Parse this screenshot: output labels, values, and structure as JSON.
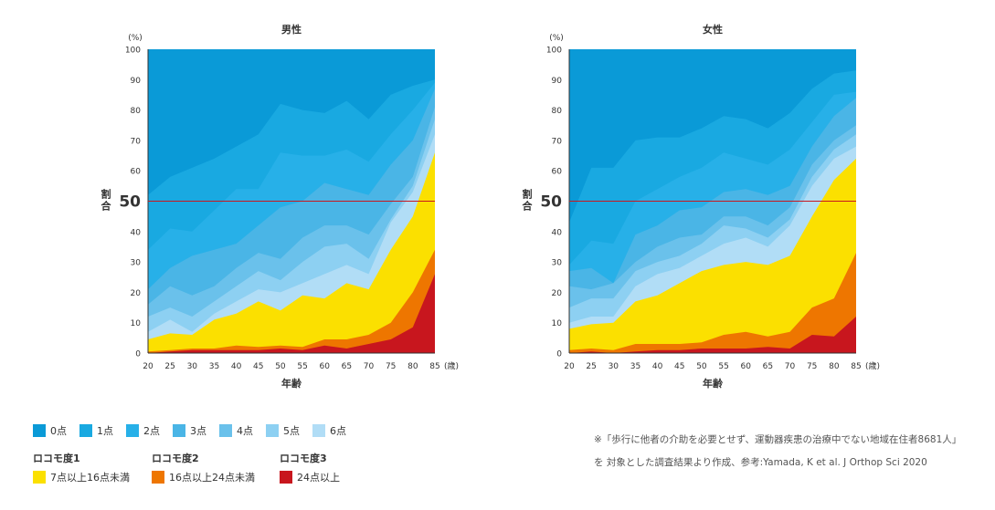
{
  "chart_data": [
    {
      "type": "area",
      "stacked": true,
      "title": "男性",
      "ylabel": "割合",
      "yunit": "(%)",
      "xlabel": "年齢",
      "xunit": "(歳)",
      "categories": [
        "20",
        "25",
        "30",
        "35",
        "40",
        "45",
        "50",
        "55",
        "60",
        "65",
        "70",
        "75",
        "80",
        "85"
      ],
      "ylim": [
        0,
        100
      ],
      "yticks": [
        0,
        10,
        20,
        30,
        40,
        50,
        60,
        70,
        80,
        90,
        100
      ],
      "yticks_display": [
        "0",
        "10",
        "20",
        "30",
        "40",
        "",
        "60",
        "70",
        "80",
        "90",
        "100"
      ],
      "reference_line": {
        "value": 50,
        "label": "50"
      },
      "cumulative": {
        "locomo3": [
          0,
          0.5,
          1,
          1,
          1,
          1,
          1.5,
          1,
          2.5,
          1.5,
          3,
          4.5,
          8.5,
          26
        ],
        "locomo2": [
          0.5,
          1,
          1.5,
          1.5,
          2.5,
          2,
          2.5,
          2,
          4.5,
          4.5,
          6,
          10,
          20,
          34
        ],
        "locomo1": [
          4.5,
          6.5,
          6,
          11,
          13,
          17,
          14,
          19,
          18,
          23,
          21,
          34,
          45,
          66
        ],
        "p6": [
          7,
          11,
          7,
          13,
          17,
          21,
          20,
          23,
          26,
          29,
          26,
          43,
          53,
          72
        ],
        "p5": [
          12,
          15,
          12,
          17,
          22,
          27,
          24,
          30,
          35,
          36,
          31,
          44,
          55,
          77
        ],
        "p4": [
          16,
          22,
          19,
          22,
          28,
          33,
          31,
          38,
          42,
          42,
          39,
          49,
          58,
          81
        ],
        "p3": [
          21,
          28,
          32,
          34,
          36,
          42,
          48,
          50,
          56,
          54,
          52,
          62,
          70,
          87
        ],
        "p2": [
          34,
          41,
          40,
          47,
          54,
          54,
          66,
          65,
          65,
          67,
          63,
          72,
          80,
          89
        ],
        "p1": [
          52,
          58,
          61,
          64,
          68,
          72,
          82,
          80,
          79,
          83,
          77,
          85,
          88,
          90
        ],
        "p0": [
          100,
          100,
          100,
          100,
          100,
          100,
          100,
          100,
          100,
          100,
          100,
          100,
          100,
          100
        ]
      }
    },
    {
      "type": "area",
      "stacked": true,
      "title": "女性",
      "ylabel": "割合",
      "yunit": "(%)",
      "xlabel": "年齢",
      "xunit": "(歳)",
      "categories": [
        "20",
        "25",
        "30",
        "35",
        "40",
        "45",
        "50",
        "55",
        "60",
        "65",
        "70",
        "75",
        "80",
        "85"
      ],
      "ylim": [
        0,
        100
      ],
      "yticks": [
        0,
        10,
        20,
        30,
        40,
        50,
        60,
        70,
        80,
        90,
        100
      ],
      "yticks_display": [
        "0",
        "10",
        "20",
        "30",
        "40",
        "",
        "60",
        "70",
        "80",
        "90",
        "100"
      ],
      "reference_line": {
        "value": 50,
        "label": "50"
      },
      "cumulative": {
        "locomo3": [
          0,
          0.5,
          0,
          0.5,
          1,
          1,
          1.5,
          1.5,
          1.5,
          2,
          1.5,
          6,
          5.5,
          12
        ],
        "locomo2": [
          1,
          1.5,
          1,
          3,
          3,
          3,
          3.5,
          6,
          7,
          5.5,
          7,
          15,
          18,
          33
        ],
        "locomo1": [
          8,
          9.5,
          10,
          17,
          19,
          23,
          27,
          29,
          30,
          29,
          32,
          45,
          57,
          64
        ],
        "p6": [
          10,
          12,
          12,
          22,
          26,
          28,
          32,
          36,
          38,
          35,
          42,
          55,
          64,
          68
        ],
        "p5": [
          15,
          18,
          18,
          27,
          30,
          32,
          36,
          42,
          41,
          38,
          44,
          58,
          67,
          72
        ],
        "p4": [
          22,
          21,
          23,
          30,
          35,
          38,
          39,
          45,
          45,
          42,
          48,
          62,
          70,
          75
        ],
        "p3": [
          27,
          28,
          23,
          39,
          42,
          47,
          48,
          53,
          54,
          52,
          55,
          68,
          78,
          84
        ],
        "p2": [
          29,
          37,
          36,
          50,
          54,
          58,
          61,
          66,
          64,
          62,
          67,
          76,
          85,
          86
        ],
        "p1": [
          43,
          61,
          61,
          70,
          71,
          71,
          74,
          78,
          77,
          74,
          79,
          87,
          92,
          93
        ],
        "p0": [
          100,
          100,
          100,
          100,
          100,
          100,
          100,
          100,
          100,
          100,
          100,
          100,
          100,
          100
        ]
      }
    }
  ],
  "series_order": [
    "locomo3",
    "locomo2",
    "locomo1",
    "p6",
    "p5",
    "p4",
    "p3",
    "p2",
    "p1",
    "p0"
  ],
  "colors": {
    "p0": "#0a9ad7",
    "p1": "#19a9e1",
    "p2": "#27b0e8",
    "p3": "#4ab5e6",
    "p4": "#6ac1eb",
    "p5": "#8dd0f2",
    "p6": "#b1ddf6",
    "locomo1": "#fbe000",
    "locomo2": "#ee7600",
    "locomo3": "#c8161e",
    "refline": "#c8161e"
  },
  "legend": {
    "points": [
      {
        "key": "p0",
        "label": "0点"
      },
      {
        "key": "p1",
        "label": "1点"
      },
      {
        "key": "p2",
        "label": "2点"
      },
      {
        "key": "p3",
        "label": "3点"
      },
      {
        "key": "p4",
        "label": "4点"
      },
      {
        "key": "p5",
        "label": "5点"
      },
      {
        "key": "p6",
        "label": "6点"
      }
    ],
    "locomo": [
      {
        "key": "locomo1",
        "title": "ロコモ度1",
        "label": "7点以上16点未満"
      },
      {
        "key": "locomo2",
        "title": "ロコモ度2",
        "label": "16点以上24点未満"
      },
      {
        "key": "locomo3",
        "title": "ロコモ度3",
        "label": "24点以上"
      }
    ]
  },
  "note": "※「歩行に他者の介助を必要とせず、運動器疾患の治療中でない地域在住者8681人」を 対象とした調査結果より作成、参考:Yamada, K et al. J Orthop Sci 2020"
}
